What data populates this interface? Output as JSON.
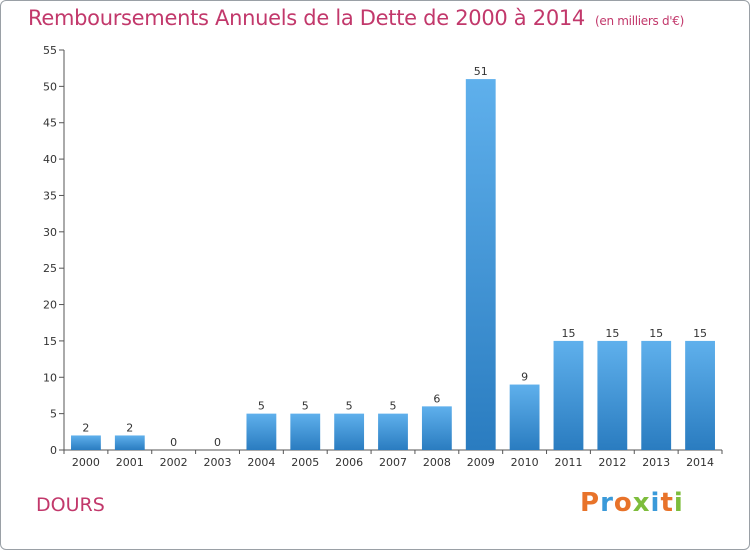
{
  "header": {
    "title": "Remboursements Annuels de la Dette de 2000 à 2014",
    "subtitle": "(en milliers d'€)"
  },
  "footer": {
    "place": "DOURS",
    "logo_text": "Proxiti"
  },
  "colors": {
    "accent": "#c2386b",
    "bar_top": "#5fb0ec",
    "bar_bottom": "#2a7cc0",
    "logo": [
      "#e8732a",
      "#3a9ad9",
      "#e8732a",
      "#7dbd3c",
      "#3a9ad9",
      "#e8732a",
      "#7dbd3c"
    ]
  },
  "chart_data": {
    "type": "bar",
    "categories": [
      "2000",
      "2001",
      "2002",
      "2003",
      "2004",
      "2005",
      "2006",
      "2007",
      "2008",
      "2009",
      "2010",
      "2011",
      "2012",
      "2013",
      "2014"
    ],
    "values": [
      2,
      2,
      0,
      0,
      5,
      5,
      5,
      5,
      6,
      51,
      9,
      15,
      15,
      15,
      15
    ],
    "ylim": [
      0,
      55
    ],
    "yticks": [
      0,
      5,
      10,
      15,
      20,
      25,
      30,
      35,
      40,
      45,
      50,
      55
    ],
    "grid": false,
    "legend": "none"
  }
}
